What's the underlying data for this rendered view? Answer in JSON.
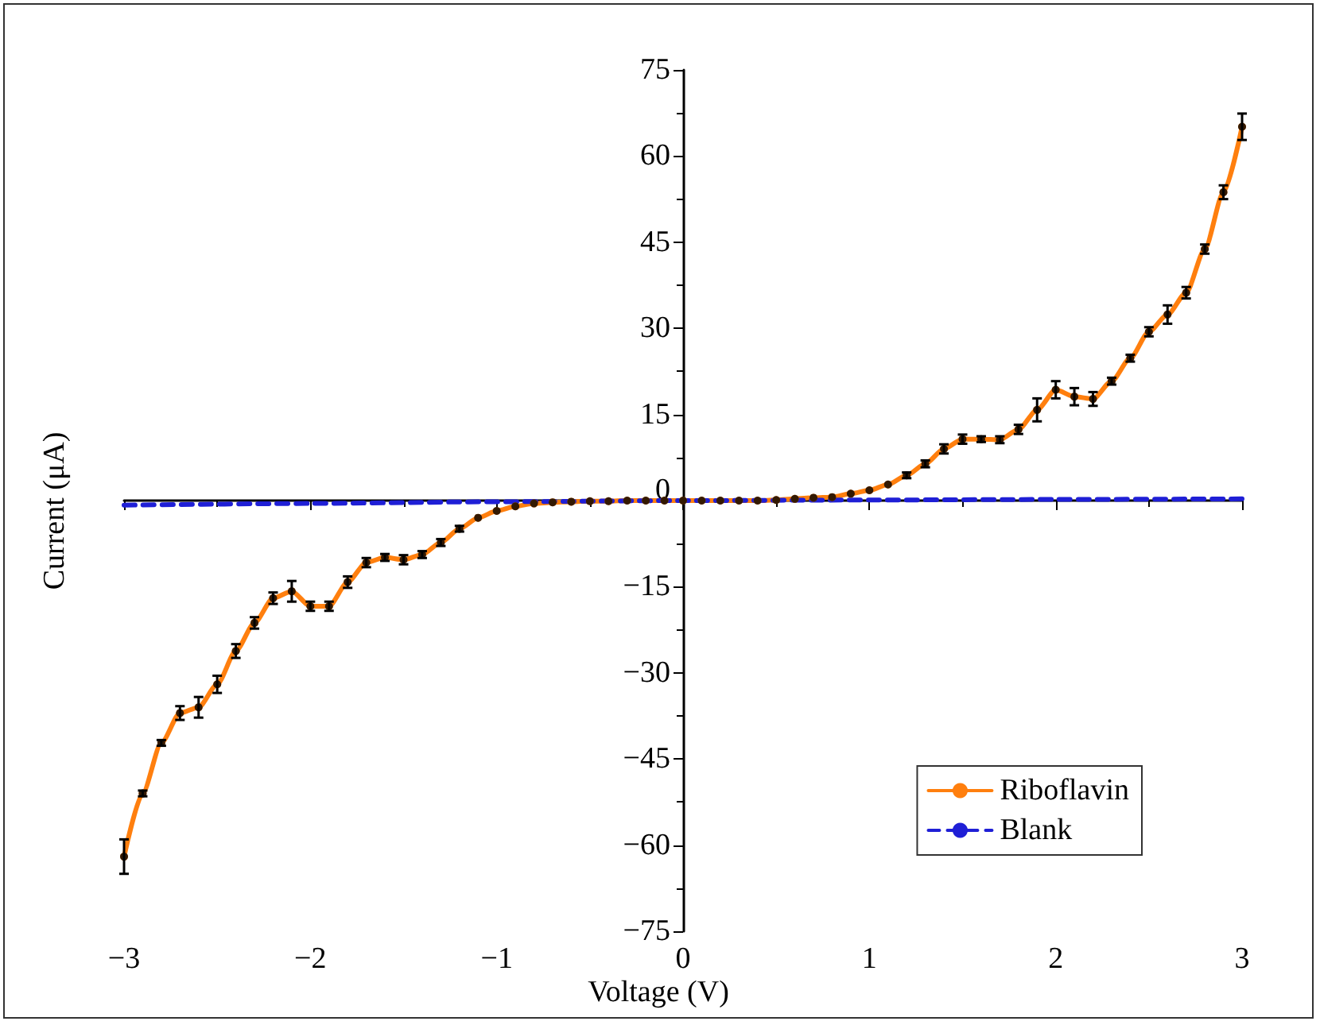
{
  "chart_data": {
    "type": "line",
    "xlabel": "Voltage (V)",
    "ylabel": "Current (μA)",
    "xlim": [
      -3,
      3
    ],
    "ylim": [
      -75,
      75
    ],
    "xticks": [
      {
        "value": -3,
        "label": "−3"
      },
      {
        "value": -2,
        "label": "−2"
      },
      {
        "value": -1,
        "label": "−1"
      },
      0,
      1,
      2,
      3
    ],
    "yticks": [
      {
        "value": -75,
        "label": "−75"
      },
      {
        "value": -60,
        "label": "−60"
      },
      {
        "value": -45,
        "label": "−45"
      },
      {
        "value": -30,
        "label": "−30"
      },
      {
        "value": -15,
        "label": "−15"
      },
      0,
      15,
      30,
      45,
      60,
      75
    ],
    "legend": "bottom right",
    "series": [
      {
        "name": "Riboflavin",
        "color": "#ff7f0e",
        "marker": "circle",
        "line_style": "solid",
        "x": [
          -3.0,
          -2.9,
          -2.8,
          -2.7,
          -2.6,
          -2.5,
          -2.4,
          -2.3,
          -2.2,
          -2.1,
          -2.0,
          -1.9,
          -1.8,
          -1.7,
          -1.6,
          -1.5,
          -1.4,
          -1.3,
          -1.2,
          -1.1,
          -1.0,
          -0.9,
          -0.8,
          -0.7,
          -0.6,
          -0.5,
          -0.4,
          -0.3,
          -0.2,
          -0.1,
          0.0,
          0.1,
          0.2,
          0.3,
          0.4,
          0.5,
          0.6,
          0.7,
          0.8,
          0.9,
          1.0,
          1.1,
          1.2,
          1.3,
          1.4,
          1.5,
          1.6,
          1.7,
          1.8,
          1.9,
          2.0,
          2.1,
          2.2,
          2.3,
          2.4,
          2.5,
          2.6,
          2.7,
          2.8,
          2.9,
          3.0
        ],
        "values": [
          -62,
          -51,
          -42.2,
          -37,
          -36,
          -32,
          -26.2,
          -21.3,
          -17,
          -15.8,
          -18.4,
          -18.4,
          -14.2,
          -10.8,
          -9.9,
          -10.3,
          -9.4,
          -7.3,
          -4.9,
          -3,
          -1.8,
          -1,
          -0.5,
          -0.3,
          -0.2,
          -0.1,
          -0.1,
          0,
          0,
          0,
          0,
          0,
          0,
          0,
          0,
          0.1,
          0.3,
          0.5,
          0.6,
          1.2,
          1.8,
          2.8,
          4.4,
          6.4,
          9,
          10.7,
          10.7,
          10.6,
          12.4,
          15.8,
          19.3,
          18.1,
          17.7,
          20.8,
          24.8,
          29.4,
          32.4,
          36.2,
          43.8,
          53.7,
          65.1
        ],
        "errors": [
          3,
          0.5,
          0.5,
          1.2,
          1.8,
          1.5,
          1.2,
          1,
          1,
          1.8,
          0.8,
          0.8,
          1,
          0.8,
          0.6,
          0.8,
          0.6,
          0.6,
          0.5,
          null,
          null,
          null,
          null,
          null,
          null,
          null,
          null,
          null,
          null,
          null,
          null,
          null,
          null,
          null,
          null,
          null,
          null,
          null,
          null,
          null,
          null,
          null,
          0.5,
          0.6,
          0.8,
          0.8,
          0.5,
          0.6,
          0.8,
          2,
          1.5,
          1.5,
          1.2,
          0.6,
          0.6,
          0.8,
          1.6,
          1,
          0.8,
          1.2,
          2.3
        ]
      },
      {
        "name": "Blank",
        "color": "#1f1fd6",
        "marker": "none",
        "line_style": "dashed",
        "x": [
          -3,
          -2,
          -1,
          0,
          1,
          2,
          3
        ],
        "values": [
          -0.8,
          -0.5,
          -0.2,
          0,
          0.1,
          0.2,
          0.3
        ]
      }
    ]
  }
}
